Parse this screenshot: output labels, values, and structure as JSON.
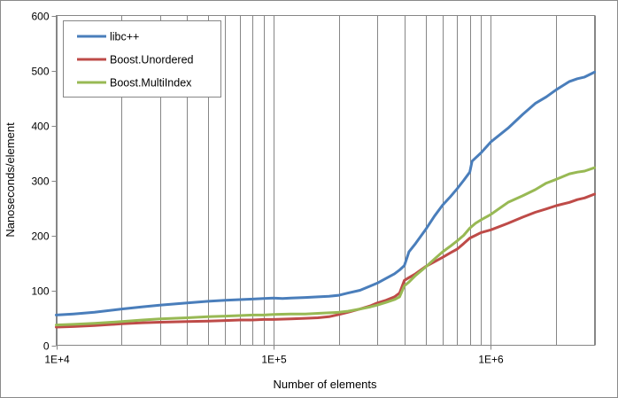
{
  "chart_data": {
    "type": "line",
    "title": "",
    "xlabel": "Number of elements",
    "ylabel": "Nanoseconds/element",
    "xscale": "log",
    "xlim": [
      10000,
      3000000
    ],
    "ylim": [
      0,
      600
    ],
    "x_ticks": [
      {
        "value": 10000,
        "label": "1E+4"
      },
      {
        "value": 100000,
        "label": "1E+5"
      },
      {
        "value": 1000000,
        "label": "1E+6"
      }
    ],
    "y_ticks": [
      {
        "value": 0,
        "label": "0"
      },
      {
        "value": 100,
        "label": "100"
      },
      {
        "value": 200,
        "label": "200"
      },
      {
        "value": 300,
        "label": "300"
      },
      {
        "value": 400,
        "label": "400"
      },
      {
        "value": 500,
        "label": "500"
      },
      {
        "value": 600,
        "label": "600"
      }
    ],
    "grid": true,
    "legend_position": "top-left",
    "series": [
      {
        "name": "libc++",
        "color": "#4a7ebb",
        "points": [
          [
            10000,
            55
          ],
          [
            12000,
            57
          ],
          [
            15000,
            60
          ],
          [
            20000,
            66
          ],
          [
            25000,
            70
          ],
          [
            30000,
            73
          ],
          [
            40000,
            77
          ],
          [
            50000,
            80
          ],
          [
            60000,
            82
          ],
          [
            70000,
            83
          ],
          [
            80000,
            84
          ],
          [
            90000,
            85
          ],
          [
            100000,
            86
          ],
          [
            110000,
            85
          ],
          [
            120000,
            86
          ],
          [
            140000,
            87
          ],
          [
            160000,
            88
          ],
          [
            180000,
            89
          ],
          [
            200000,
            91
          ],
          [
            220000,
            95
          ],
          [
            250000,
            100
          ],
          [
            280000,
            108
          ],
          [
            300000,
            113
          ],
          [
            330000,
            122
          ],
          [
            360000,
            130
          ],
          [
            380000,
            137
          ],
          [
            400000,
            145
          ],
          [
            420000,
            170
          ],
          [
            450000,
            185
          ],
          [
            500000,
            210
          ],
          [
            550000,
            235
          ],
          [
            600000,
            255
          ],
          [
            650000,
            270
          ],
          [
            700000,
            285
          ],
          [
            750000,
            300
          ],
          [
            800000,
            315
          ],
          [
            820000,
            335
          ],
          [
            900000,
            350
          ],
          [
            1000000,
            370
          ],
          [
            1200000,
            395
          ],
          [
            1400000,
            420
          ],
          [
            1600000,
            440
          ],
          [
            1800000,
            452
          ],
          [
            2000000,
            465
          ],
          [
            2300000,
            480
          ],
          [
            2500000,
            485
          ],
          [
            2700000,
            488
          ],
          [
            3000000,
            497
          ]
        ]
      },
      {
        "name": "Boost.Unordered",
        "color": "#be4b48",
        "points": [
          [
            10000,
            33
          ],
          [
            12000,
            34
          ],
          [
            15000,
            36
          ],
          [
            20000,
            39
          ],
          [
            25000,
            41
          ],
          [
            30000,
            42
          ],
          [
            40000,
            43
          ],
          [
            50000,
            44
          ],
          [
            60000,
            45
          ],
          [
            70000,
            46
          ],
          [
            80000,
            46
          ],
          [
            90000,
            47
          ],
          [
            100000,
            47
          ],
          [
            120000,
            48
          ],
          [
            140000,
            49
          ],
          [
            160000,
            50
          ],
          [
            180000,
            52
          ],
          [
            200000,
            56
          ],
          [
            220000,
            60
          ],
          [
            250000,
            66
          ],
          [
            280000,
            72
          ],
          [
            300000,
            77
          ],
          [
            330000,
            82
          ],
          [
            360000,
            88
          ],
          [
            380000,
            95
          ],
          [
            400000,
            118
          ],
          [
            420000,
            123
          ],
          [
            450000,
            130
          ],
          [
            500000,
            143
          ],
          [
            550000,
            152
          ],
          [
            600000,
            160
          ],
          [
            650000,
            168
          ],
          [
            700000,
            175
          ],
          [
            750000,
            185
          ],
          [
            800000,
            195
          ],
          [
            850000,
            200
          ],
          [
            900000,
            205
          ],
          [
            1000000,
            210
          ],
          [
            1200000,
            222
          ],
          [
            1400000,
            233
          ],
          [
            1600000,
            242
          ],
          [
            1800000,
            248
          ],
          [
            2000000,
            254
          ],
          [
            2300000,
            260
          ],
          [
            2500000,
            265
          ],
          [
            2700000,
            268
          ],
          [
            3000000,
            275
          ]
        ]
      },
      {
        "name": "Boost.MultiIndex",
        "color": "#98b954",
        "points": [
          [
            10000,
            37
          ],
          [
            12000,
            38
          ],
          [
            15000,
            40
          ],
          [
            20000,
            43
          ],
          [
            25000,
            46
          ],
          [
            30000,
            48
          ],
          [
            40000,
            50
          ],
          [
            50000,
            52
          ],
          [
            60000,
            53
          ],
          [
            70000,
            54
          ],
          [
            80000,
            55
          ],
          [
            90000,
            55
          ],
          [
            100000,
            56
          ],
          [
            120000,
            57
          ],
          [
            140000,
            57
          ],
          [
            160000,
            58
          ],
          [
            180000,
            59
          ],
          [
            200000,
            60
          ],
          [
            220000,
            62
          ],
          [
            250000,
            66
          ],
          [
            280000,
            70
          ],
          [
            300000,
            73
          ],
          [
            330000,
            78
          ],
          [
            360000,
            83
          ],
          [
            380000,
            88
          ],
          [
            400000,
            108
          ],
          [
            420000,
            115
          ],
          [
            450000,
            127
          ],
          [
            500000,
            142
          ],
          [
            550000,
            157
          ],
          [
            600000,
            170
          ],
          [
            650000,
            180
          ],
          [
            700000,
            190
          ],
          [
            750000,
            200
          ],
          [
            800000,
            213
          ],
          [
            850000,
            222
          ],
          [
            900000,
            228
          ],
          [
            1000000,
            238
          ],
          [
            1200000,
            260
          ],
          [
            1400000,
            272
          ],
          [
            1600000,
            283
          ],
          [
            1800000,
            295
          ],
          [
            2000000,
            302
          ],
          [
            2300000,
            312
          ],
          [
            2500000,
            315
          ],
          [
            2700000,
            317
          ],
          [
            3000000,
            323
          ]
        ]
      }
    ]
  }
}
